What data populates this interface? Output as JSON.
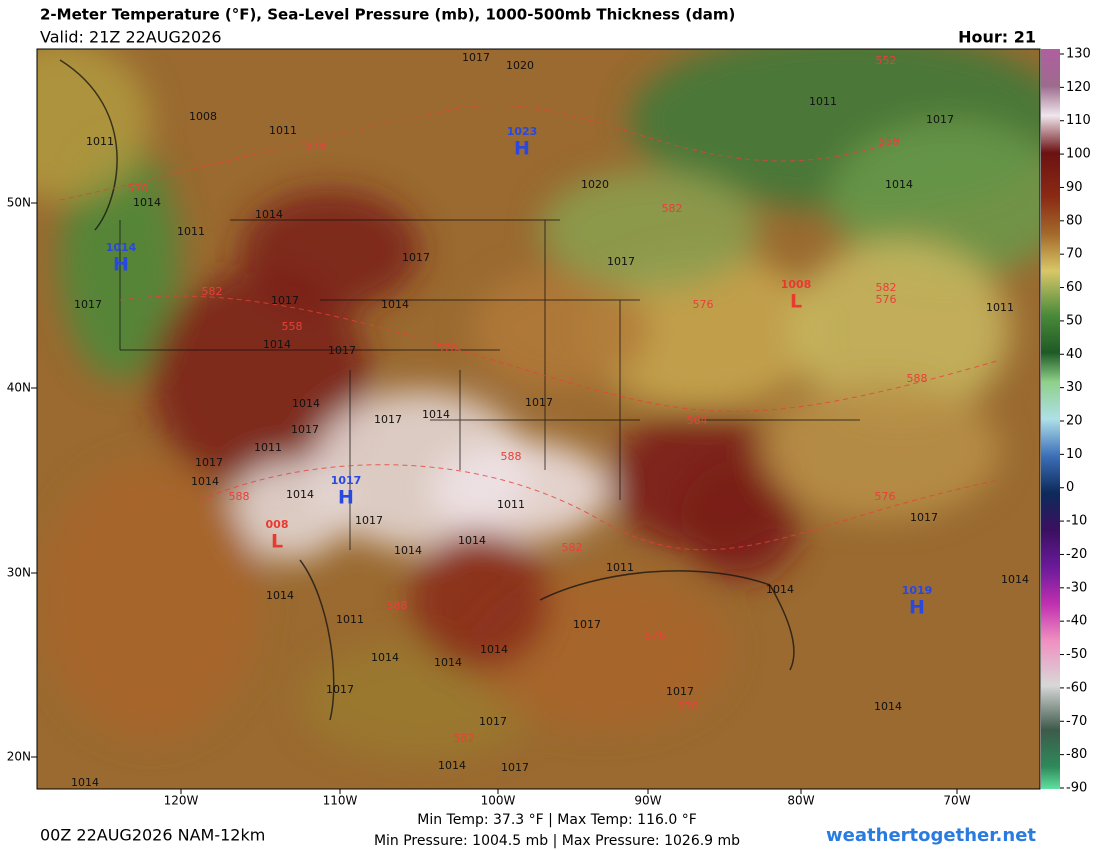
{
  "header": {
    "title": "2-Meter Temperature (°F), Sea-Level Pressure (mb), 1000-500mb Thickness (dam)",
    "valid": "Valid: 21Z 22AUG2026",
    "hour": "Hour: 21"
  },
  "map": {
    "lat_labels": [
      "50N",
      "40N",
      "30N",
      "20N"
    ],
    "lon_labels": [
      "120W",
      "110W",
      "100W",
      "90W",
      "80W",
      "70W"
    ],
    "pressure_centers": [
      {
        "symbol": "H",
        "value": "1023"
      },
      {
        "symbol": "H",
        "value": "1014"
      },
      {
        "symbol": "L",
        "value": "1008"
      },
      {
        "symbol": "H",
        "value": "1017"
      },
      {
        "symbol": "L",
        "value": "008"
      },
      {
        "symbol": "H",
        "value": "1019"
      }
    ],
    "isobar_labels": [
      "1017",
      "1020",
      "1008",
      "1011",
      "1011",
      "1020",
      "1014",
      "1014",
      "1011",
      "1017",
      "1017",
      "1017",
      "1014",
      "1017",
      "1011",
      "1017",
      "1014",
      "1011",
      "1017",
      "1014",
      "1014",
      "1017",
      "1017",
      "1014",
      "1017",
      "1011",
      "1017",
      "1014",
      "1014",
      "1011",
      "1014",
      "1014",
      "1017",
      "1011",
      "1014",
      "1014",
      "1017",
      "1014",
      "1014",
      "1011",
      "1014",
      "1014",
      "1017",
      "1017",
      "1017",
      "1014",
      "1017",
      "1014",
      "1017",
      "1014"
    ],
    "thickness_labels": [
      "552",
      "576",
      "570",
      "558",
      "582",
      "582",
      "588",
      "564",
      "558",
      "582",
      "570",
      "576",
      "588",
      "588",
      "576",
      "582",
      "588",
      "576",
      "576",
      "582",
      "576"
    ]
  },
  "colorbar": {
    "ticks": [
      130,
      120,
      110,
      100,
      90,
      80,
      70,
      60,
      50,
      40,
      30,
      20,
      10,
      0,
      -10,
      -20,
      -30,
      -40,
      -50,
      -60,
      -70,
      -80,
      -90
    ]
  },
  "footer": {
    "run": "00Z 22AUG2026 NAM-12km",
    "temps": "Min Temp:  37.3 °F | Max Temp: 116.0 °F",
    "pressures": "Min Pressure: 1004.5 mb | Max Pressure: 1026.9 mb",
    "site": "weathertogether.net"
  }
}
